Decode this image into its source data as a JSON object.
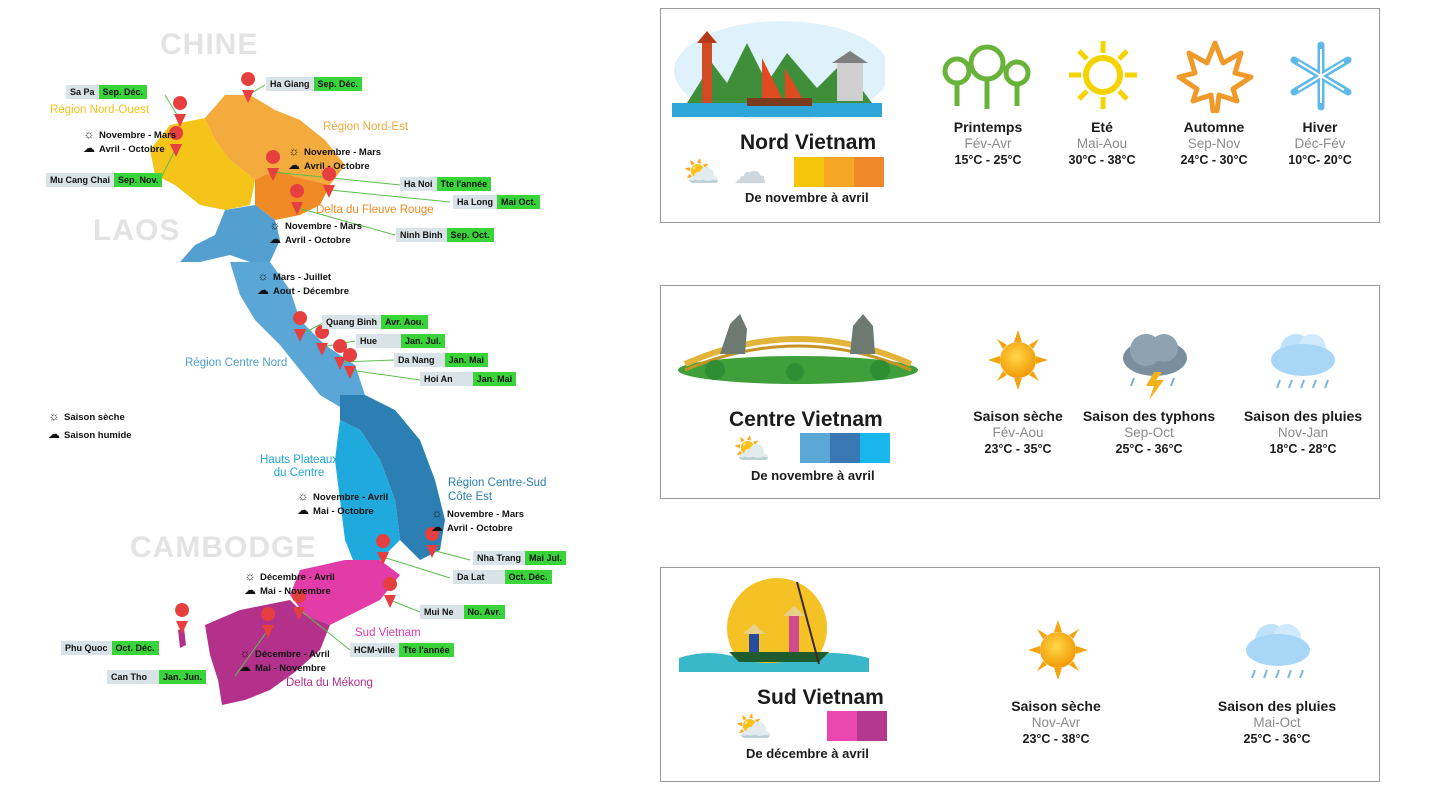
{
  "map": {
    "countries": [
      {
        "id": "chine",
        "label": "CHINE"
      },
      {
        "id": "laos",
        "label": "LAOS"
      },
      {
        "id": "cambodge",
        "label": "CAMBODGE"
      }
    ],
    "regions": [
      {
        "id": "nord-ouest",
        "label": "Région Nord-Ouest",
        "color": "#f3c21a"
      },
      {
        "id": "nord-est",
        "label": "Région Nord-Est",
        "color": "#f2a93b"
      },
      {
        "id": "fleuve-rouge",
        "label": "Delta du Fleuve Rouge",
        "color": "#f08a24"
      },
      {
        "id": "centre-nord",
        "label": "Région Centre Nord",
        "color": "#4f9fd0"
      },
      {
        "id": "hauts-plateaux",
        "label": "Hauts Plateaux\ndu Centre",
        "color": "#1fa7d9"
      },
      {
        "id": "centre-sud",
        "label": "Région Centre-Sud\nCôte Est",
        "color": "#2a7fb0"
      },
      {
        "id": "sud",
        "label": "Sud Vietnam",
        "color": "#e03aa9"
      },
      {
        "id": "mekong",
        "label": "Delta du Mékong",
        "color": "#b0308a"
      }
    ],
    "climate_notes": [
      {
        "dry": "Novembre - Mars",
        "wet": "Avril - Octobre"
      },
      {
        "dry": "Novembre - Mars",
        "wet": "Avril - Octobre"
      },
      {
        "dry": "Novembre - Mars",
        "wet": "Avril - Octobre"
      },
      {
        "dry": "Mars - Juillet",
        "wet": "Aout - Décembre"
      },
      {
        "dry": "Novembre - Avril",
        "wet": "Mai - Octobre"
      },
      {
        "dry": "Novembre - Mars",
        "wet": "Avril - Octobre"
      },
      {
        "dry": "Décembre - Avril",
        "wet": "Mai - Novembre"
      },
      {
        "dry": "Décembre - Avril",
        "wet": "Mai - Novembre"
      }
    ],
    "cities": [
      {
        "name": "Sa Pa",
        "months": "Sep. Déc."
      },
      {
        "name": "Ha Giang",
        "months": "Sep. Déc."
      },
      {
        "name": "Mu Cang Chai",
        "months": "Sep. Nov."
      },
      {
        "name": "Ha Noi",
        "months": "Tte l'année"
      },
      {
        "name": "Ha Long",
        "months": "Mai Oct."
      },
      {
        "name": "Ninh Binh",
        "months": "Sep. Oct."
      },
      {
        "name": "Quang Binh",
        "months": "Avr. Aou."
      },
      {
        "name": "Hue",
        "months": "Jan. Jul."
      },
      {
        "name": "Da Nang",
        "months": "Jan. Mai"
      },
      {
        "name": "Hoi An",
        "months": "Jan. Mai"
      },
      {
        "name": "Nha Trang",
        "months": "Mai Jul."
      },
      {
        "name": "Da Lat",
        "months": "Oct. Déc."
      },
      {
        "name": "Mui Ne",
        "months": "No. Avr."
      },
      {
        "name": "HCM-ville",
        "months": "Tte l'année"
      },
      {
        "name": "Phu Quoc",
        "months": "Oct. Déc."
      },
      {
        "name": "Can Tho",
        "months": "Jan. Jun."
      }
    ],
    "legend": {
      "dry": "Saison sèche",
      "wet": "Saison humide"
    }
  },
  "panels": {
    "nord": {
      "title": "Nord Vietnam",
      "best": "De novembre à avril",
      "colors": [
        "#f6c60f",
        "#f5a623",
        "#f0892a"
      ],
      "seasons": [
        {
          "name": "Printemps",
          "period": "Fév-Avr",
          "temp": "15°C - 25°C",
          "icon": "tree-icon"
        },
        {
          "name": "Eté",
          "period": "Mai-Aou",
          "temp": "30°C - 38°C",
          "icon": "sun-icon"
        },
        {
          "name": "Automne",
          "period": "Sep-Nov",
          "temp": "24°C - 30°C",
          "icon": "maple-leaf-icon"
        },
        {
          "name": "Hiver",
          "period": "Déc-Fév",
          "temp": "10°C- 20°C",
          "icon": "snowflake-icon"
        }
      ]
    },
    "centre": {
      "title": "Centre Vietnam",
      "best": "De novembre à avril",
      "colors": [
        "#5ba8d6",
        "#3a78b4",
        "#18b6ec"
      ],
      "seasons": [
        {
          "name": "Saison sèche",
          "period": "Fév-Aou",
          "temp": "23°C - 35°C",
          "icon": "sun-icon"
        },
        {
          "name": "Saison des typhons",
          "period": "Sep-Oct",
          "temp": "25°C - 36°C",
          "icon": "storm-icon"
        },
        {
          "name": "Saison des pluies",
          "period": "Nov-Jan",
          "temp": "18°C - 28°C",
          "icon": "rain-cloud-icon"
        }
      ]
    },
    "sud": {
      "title": "Sud Vietnam",
      "best": "De décembre à avril",
      "colors": [
        "#ea47b0",
        "#b4388f"
      ],
      "seasons": [
        {
          "name": "Saison sèche",
          "period": "Nov-Avr",
          "temp": "23°C - 38°C",
          "icon": "sun-icon"
        },
        {
          "name": "Saison des pluies",
          "period": "Mai-Oct",
          "temp": "25°C - 36°C",
          "icon": "rain-cloud-icon"
        }
      ]
    }
  }
}
